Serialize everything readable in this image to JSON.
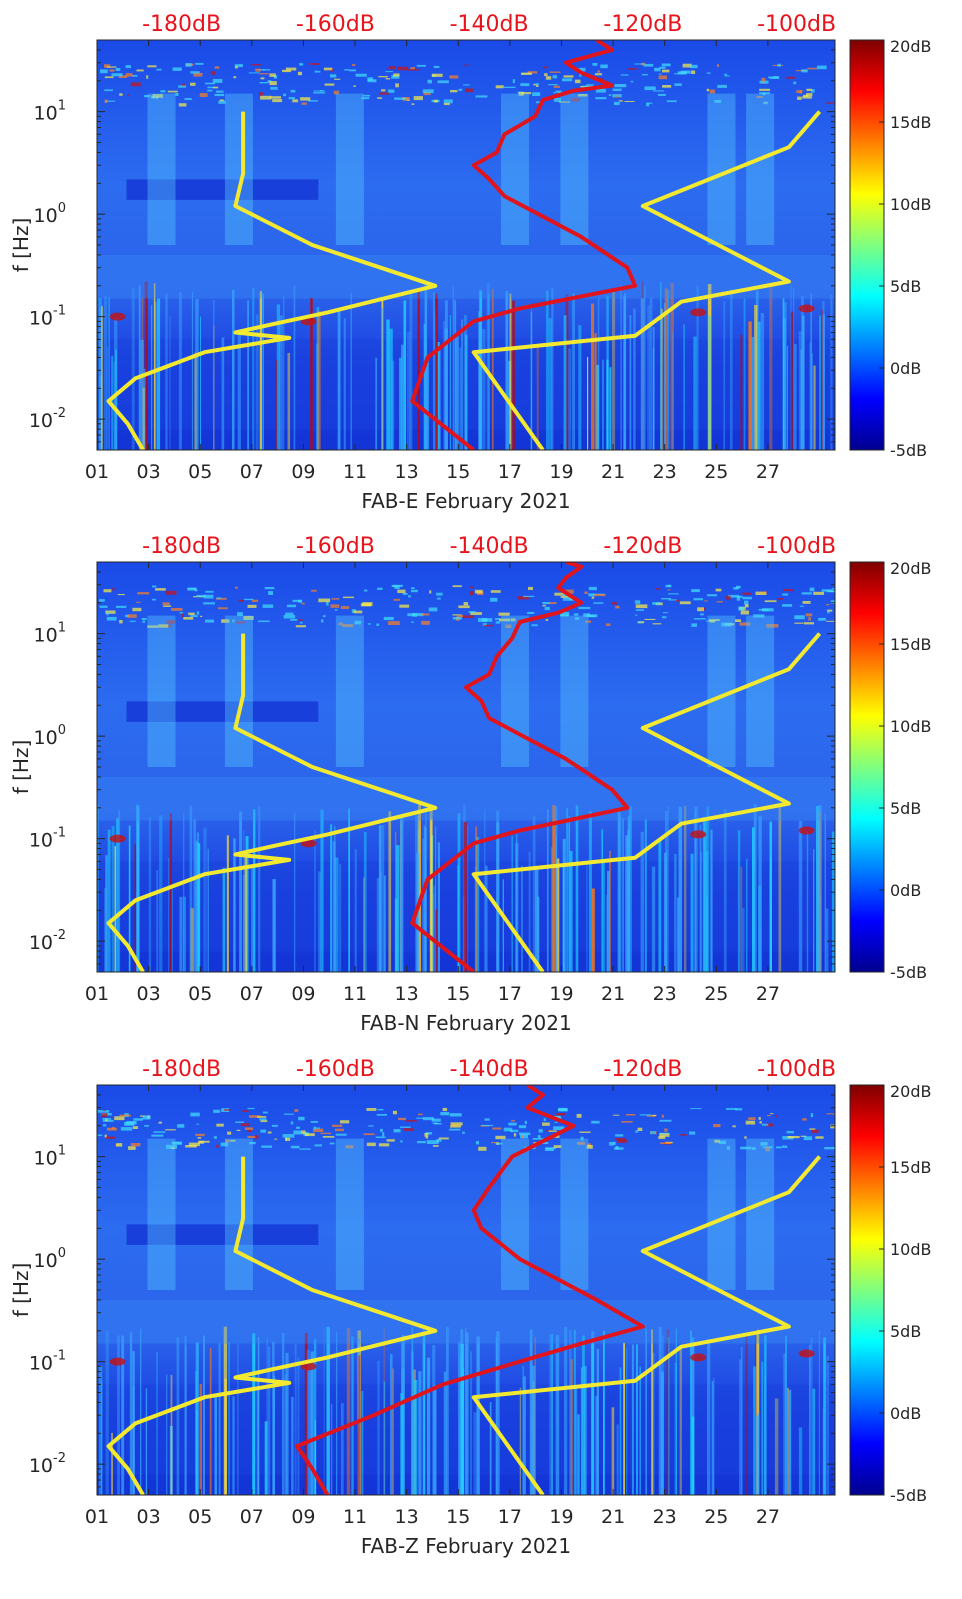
{
  "colors": {
    "background_low": "#0a1fd0",
    "background_mid": "#2c6cf0",
    "yellow_line": "#f2e930",
    "red_line": "#e0141c",
    "db_label": "#e8141c",
    "text": "#262626",
    "colormap": [
      "#00008f",
      "#0000ff",
      "#007fff",
      "#00ffff",
      "#7fff7f",
      "#ffff00",
      "#ff7f00",
      "#ff0000",
      "#7f0000"
    ]
  },
  "chart_data": [
    {
      "type": "heatmap",
      "title": "",
      "xlabel": "FAB-E February 2021",
      "ylabel": "f [Hz]",
      "x_ticks": [
        "01",
        "03",
        "05",
        "07",
        "09",
        "11",
        "13",
        "15",
        "17",
        "19",
        "21",
        "23",
        "25",
        "27"
      ],
      "x_tick_days": [
        1,
        3,
        5,
        7,
        9,
        11,
        13,
        15,
        17,
        19,
        21,
        23,
        25,
        27
      ],
      "xlim": [
        1,
        29.6
      ],
      "y_scale": "log",
      "ylim": [
        0.005,
        50
      ],
      "y_ticks": [
        {
          "value": 0.01,
          "base": "10",
          "exp": "-2"
        },
        {
          "value": 0.1,
          "base": "10",
          "exp": "-1"
        },
        {
          "value": 1,
          "base": "10",
          "exp": "0"
        },
        {
          "value": 10,
          "base": "10",
          "exp": "1"
        }
      ],
      "top_axis": {
        "labels": [
          "-180dB",
          "-160dB",
          "-140dB",
          "-120dB",
          "-100dB"
        ],
        "values": [
          -180,
          -160,
          -140,
          -120,
          -100
        ],
        "range": [
          -191,
          -95
        ]
      },
      "colorbar": {
        "labels": [
          "20dB",
          "15dB",
          "10dB",
          "5dB",
          "0dB",
          "-5dB"
        ],
        "values": [
          20,
          15,
          10,
          5,
          0,
          -5
        ],
        "range": [
          -5,
          20
        ]
      },
      "noise_model_low": {
        "freq": [
          0.005,
          0.009,
          0.015,
          0.025,
          0.045,
          0.062,
          0.07,
          0.085,
          0.11,
          0.2,
          0.5,
          1.2,
          2.5,
          10
        ],
        "db": [
          -185,
          -187,
          -189.5,
          -186,
          -177,
          -166,
          -173,
          -168,
          -161,
          -147,
          -163,
          -173,
          -172,
          -172
        ]
      },
      "noise_model_high": {
        "freq": [
          0.005,
          0.045,
          0.065,
          0.14,
          0.22,
          1.2,
          4.5,
          10
        ],
        "db": [
          -133,
          -142,
          -121,
          -115,
          -101,
          -120,
          -101,
          -97
        ]
      },
      "median_psd": {
        "freq": [
          0.005,
          0.015,
          0.04,
          0.09,
          0.12,
          0.2,
          0.3,
          0.6,
          1.5,
          2.2,
          3,
          4,
          6,
          9,
          13,
          16,
          18,
          24,
          30,
          40,
          50
        ],
        "db": [
          -142,
          -150,
          -148,
          -142,
          -136,
          -121,
          -122,
          -128,
          -138,
          -140,
          -142,
          -139,
          -138,
          -134,
          -133,
          -129,
          -124,
          -128,
          -130,
          -124,
          -126
        ]
      }
    },
    {
      "type": "heatmap",
      "title": "",
      "xlabel": "FAB-N February 2021",
      "ylabel": "f [Hz]",
      "x_ticks": [
        "01",
        "03",
        "05",
        "07",
        "09",
        "11",
        "13",
        "15",
        "17",
        "19",
        "21",
        "23",
        "25",
        "27"
      ],
      "x_tick_days": [
        1,
        3,
        5,
        7,
        9,
        11,
        13,
        15,
        17,
        19,
        21,
        23,
        25,
        27
      ],
      "xlim": [
        1,
        29.6
      ],
      "y_scale": "log",
      "ylim": [
        0.005,
        50
      ],
      "y_ticks": [
        {
          "value": 0.01,
          "base": "10",
          "exp": "-2"
        },
        {
          "value": 0.1,
          "base": "10",
          "exp": "-1"
        },
        {
          "value": 1,
          "base": "10",
          "exp": "0"
        },
        {
          "value": 10,
          "base": "10",
          "exp": "1"
        }
      ],
      "top_axis": {
        "labels": [
          "-180dB",
          "-160dB",
          "-140dB",
          "-120dB",
          "-100dB"
        ],
        "values": [
          -180,
          -160,
          -140,
          -120,
          -100
        ],
        "range": [
          -191,
          -95
        ]
      },
      "colorbar": {
        "labels": [
          "20dB",
          "15dB",
          "10dB",
          "5dB",
          "0dB",
          "-5dB"
        ],
        "values": [
          20,
          15,
          10,
          5,
          0,
          -5
        ],
        "range": [
          -5,
          20
        ]
      },
      "noise_model_low": {
        "freq": [
          0.005,
          0.009,
          0.015,
          0.025,
          0.045,
          0.062,
          0.07,
          0.085,
          0.11,
          0.2,
          0.5,
          1.2,
          2.5,
          10
        ],
        "db": [
          -185,
          -187,
          -189.5,
          -186,
          -177,
          -166,
          -173,
          -168,
          -161,
          -147,
          -163,
          -173,
          -172,
          -172
        ]
      },
      "noise_model_high": {
        "freq": [
          0.005,
          0.045,
          0.065,
          0.14,
          0.22,
          1.2,
          4.5,
          10
        ],
        "db": [
          -133,
          -142,
          -121,
          -115,
          -101,
          -120,
          -101,
          -97
        ]
      },
      "median_psd": {
        "freq": [
          0.005,
          0.015,
          0.04,
          0.09,
          0.12,
          0.2,
          0.3,
          0.6,
          1.5,
          2.2,
          3,
          4,
          6,
          9,
          13,
          16,
          20,
          28,
          35,
          45,
          50
        ],
        "db": [
          -142,
          -150,
          -148,
          -142,
          -136,
          -122,
          -124,
          -130,
          -140,
          -141,
          -143,
          -140,
          -139,
          -137,
          -136,
          -131,
          -128,
          -131,
          -130,
          -128,
          -130
        ]
      }
    },
    {
      "type": "heatmap",
      "title": "",
      "xlabel": "FAB-Z February 2021",
      "ylabel": "f [Hz]",
      "x_ticks": [
        "01",
        "03",
        "05",
        "07",
        "09",
        "11",
        "13",
        "15",
        "17",
        "19",
        "21",
        "23",
        "25",
        "27"
      ],
      "x_tick_days": [
        1,
        3,
        5,
        7,
        9,
        11,
        13,
        15,
        17,
        19,
        21,
        23,
        25,
        27
      ],
      "xlim": [
        1,
        29.6
      ],
      "y_scale": "log",
      "ylim": [
        0.005,
        50
      ],
      "y_ticks": [
        {
          "value": 0.01,
          "base": "10",
          "exp": "-2"
        },
        {
          "value": 0.1,
          "base": "10",
          "exp": "-1"
        },
        {
          "value": 1,
          "base": "10",
          "exp": "0"
        },
        {
          "value": 10,
          "base": "10",
          "exp": "1"
        }
      ],
      "top_axis": {
        "labels": [
          "-180dB",
          "-160dB",
          "-140dB",
          "-120dB",
          "-100dB"
        ],
        "values": [
          -180,
          -160,
          -140,
          -120,
          -100
        ],
        "range": [
          -191,
          -95
        ]
      },
      "colorbar": {
        "labels": [
          "20dB",
          "15dB",
          "10dB",
          "5dB",
          "0dB",
          "-5dB"
        ],
        "values": [
          20,
          15,
          10,
          5,
          0,
          -5
        ],
        "range": [
          -5,
          20
        ]
      },
      "noise_model_low": {
        "freq": [
          0.005,
          0.009,
          0.015,
          0.025,
          0.045,
          0.062,
          0.07,
          0.085,
          0.11,
          0.2,
          0.5,
          1.2,
          2.5,
          10
        ],
        "db": [
          -185,
          -187,
          -189.5,
          -186,
          -177,
          -166,
          -173,
          -168,
          -161,
          -147,
          -163,
          -173,
          -172,
          -172
        ]
      },
      "noise_model_high": {
        "freq": [
          0.005,
          0.045,
          0.065,
          0.14,
          0.22,
          1.2,
          4.5,
          10
        ],
        "db": [
          -133,
          -142,
          -121,
          -115,
          -101,
          -120,
          -101,
          -97
        ]
      },
      "median_psd": {
        "freq": [
          0.005,
          0.009,
          0.015,
          0.03,
          0.06,
          0.1,
          0.15,
          0.22,
          0.4,
          1.0,
          2,
          3,
          5,
          10,
          20,
          30,
          40,
          50
        ],
        "db": [
          -161,
          -163,
          -165,
          -155,
          -146,
          -136,
          -128,
          -120,
          -126,
          -136,
          -141,
          -142,
          -140,
          -137,
          -129,
          -135,
          -133,
          -135
        ]
      }
    }
  ]
}
